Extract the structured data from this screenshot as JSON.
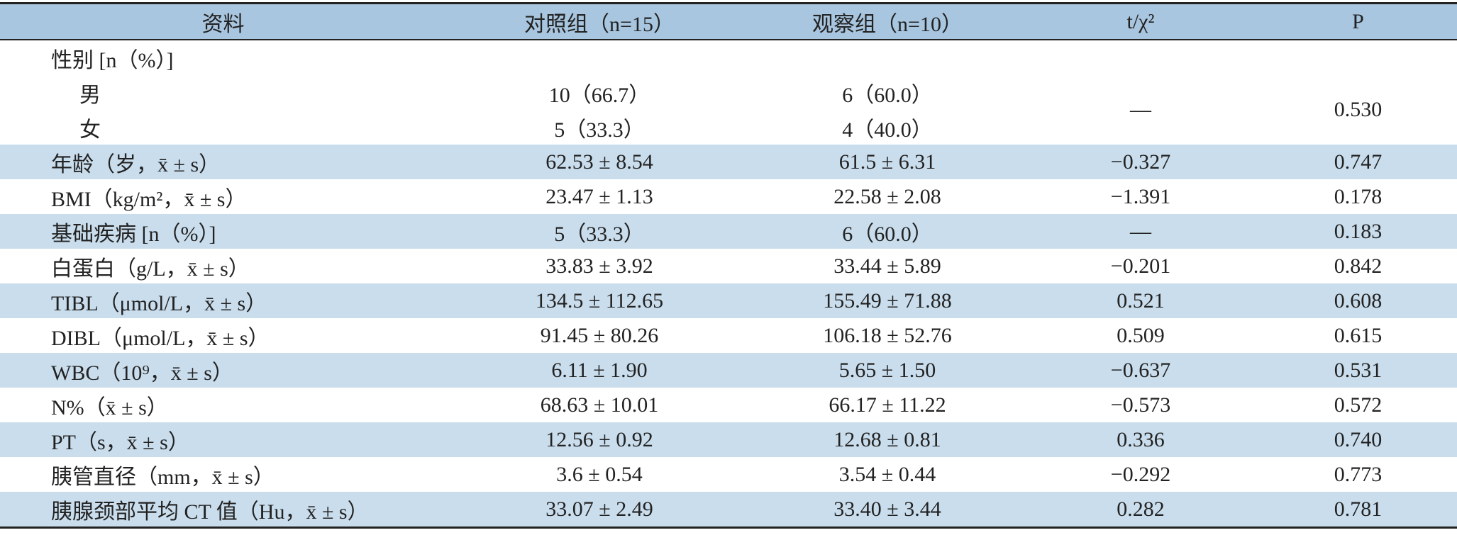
{
  "table": {
    "header": [
      "资料",
      "对照组（n=15）",
      "观察组（n=10）",
      "t/χ²",
      "P"
    ],
    "sex": {
      "label": "性别 [n（%）]",
      "rows": [
        [
          "男",
          "10（66.7）",
          "6（60.0）"
        ],
        [
          "女",
          "5（33.3）",
          "4（40.0）"
        ]
      ],
      "stat": "—",
      "p": "0.530"
    },
    "rows": [
      [
        "年龄（岁，x̄ ± s）",
        "62.53 ± 8.54",
        "61.5 ± 6.31",
        "−0.327",
        "0.747"
      ],
      [
        "BMI（kg/m²，x̄ ± s）",
        "23.47 ± 1.13",
        "22.58 ± 2.08",
        "−1.391",
        "0.178"
      ],
      [
        "基础疾病 [n（%）]",
        "5（33.3）",
        "6（60.0）",
        "—",
        "0.183"
      ],
      [
        "白蛋白（g/L，x̄ ± s）",
        "33.83 ± 3.92",
        "33.44 ± 5.89",
        "−0.201",
        "0.842"
      ],
      [
        "TIBL（μmol/L，x̄ ± s）",
        "134.5 ± 112.65",
        "155.49 ± 71.88",
        "0.521",
        "0.608"
      ],
      [
        "DIBL（μmol/L，x̄ ± s）",
        "91.45 ± 80.26",
        "106.18 ± 52.76",
        "0.509",
        "0.615"
      ],
      [
        "WBC（10⁹，x̄ ± s）",
        "6.11 ± 1.90",
        "5.65 ± 1.50",
        "−0.637",
        "0.531"
      ],
      [
        "N%（x̄ ± s）",
        "68.63 ± 10.01",
        "66.17 ± 11.22",
        "−0.573",
        "0.572"
      ],
      [
        "PT（s，x̄ ± s）",
        "12.56 ± 0.92",
        "12.68 ± 0.81",
        "0.336",
        "0.740"
      ],
      [
        "胰管直径（mm，x̄ ± s）",
        "3.6 ± 0.54",
        "3.54 ± 0.44",
        "−0.292",
        "0.773"
      ],
      [
        "胰腺颈部平均 CT 值（Hu，x̄ ± s）",
        "33.07 ± 2.49",
        "33.40 ± 3.44",
        "0.282",
        "0.781"
      ]
    ]
  }
}
